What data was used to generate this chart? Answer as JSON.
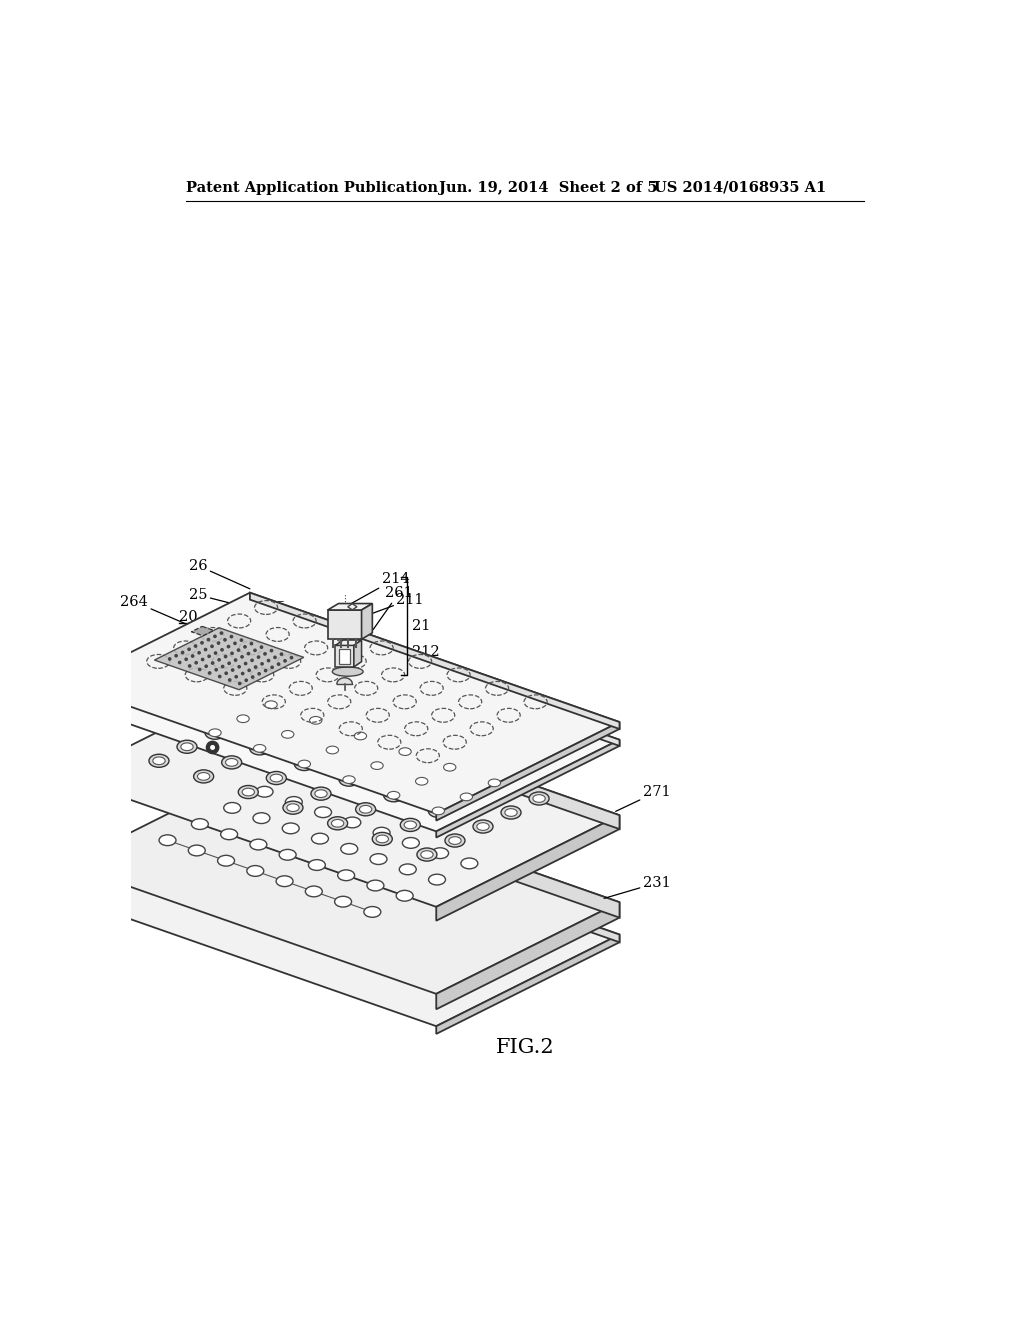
{
  "bg_color": "#ffffff",
  "header_left": "Patent Application Publication",
  "header_mid": "Jun. 19, 2014  Sheet 2 of 5",
  "header_right": "US 2014/0168935 A1",
  "fig_label": "FIG.2"
}
